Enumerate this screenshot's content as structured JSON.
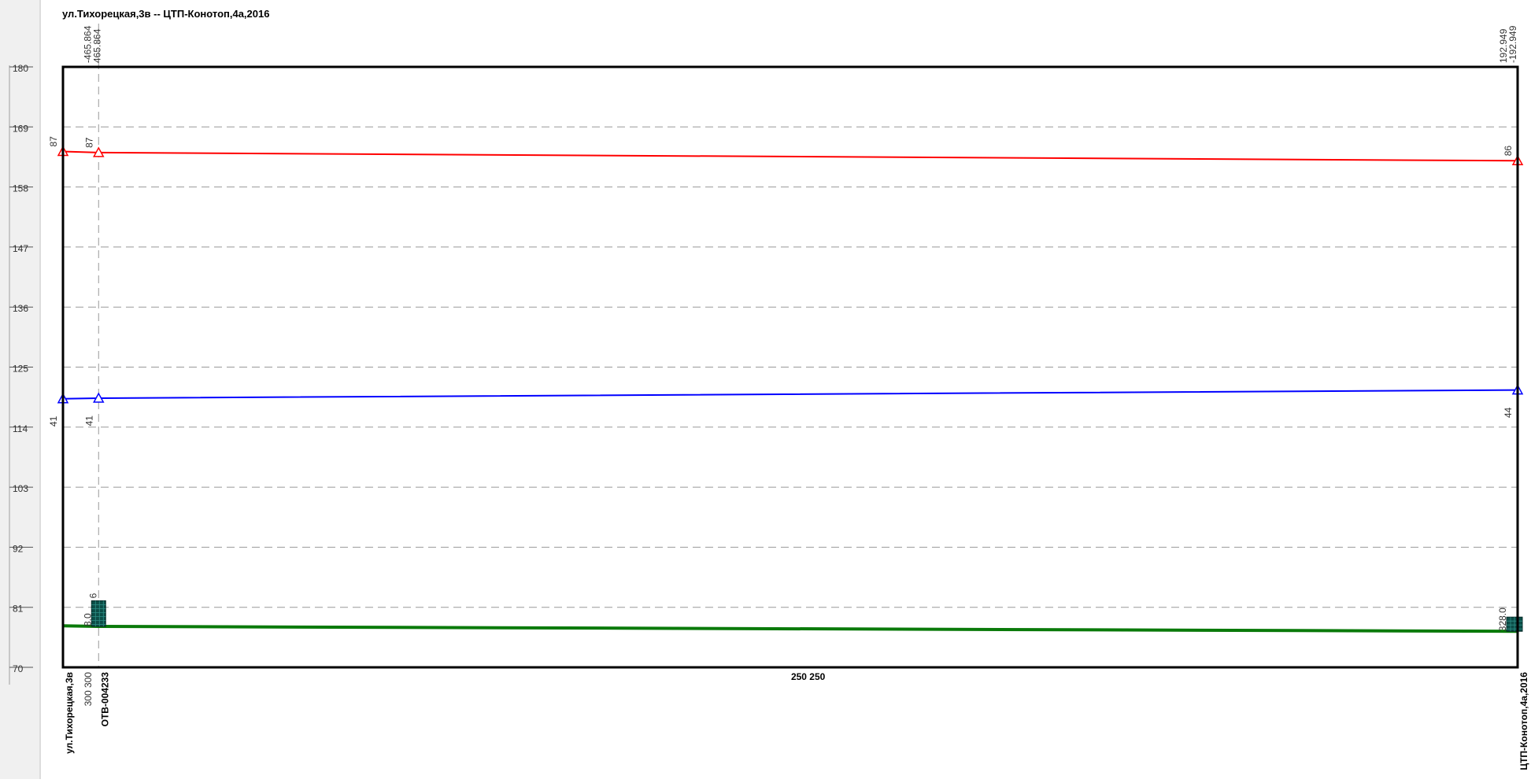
{
  "chart_data": {
    "type": "line",
    "title": "ул.Тихорецкая,3в -- ЦТП-Конотоп,4а,2016",
    "ylim": [
      70,
      180
    ],
    "y_ticks": [
      "180",
      "169",
      "158",
      "147",
      "136",
      "125",
      "114",
      "103",
      "92",
      "81",
      "70"
    ],
    "y_tick_values": [
      180,
      169,
      158,
      147,
      136,
      125,
      114,
      103,
      92,
      81,
      70
    ],
    "grid": true,
    "x": [
      0,
      0.0245,
      1
    ],
    "nodes": [
      {
        "name": "ул.Тихорецкая,3в"
      },
      {
        "name": "ОТВ-004233"
      },
      {
        "name": "ЦТП-Конотоп,4а,2016"
      }
    ],
    "top_labels": [
      {
        "node": 1,
        "lines": [
          "-465.864",
          "465.864"
        ]
      },
      {
        "node": 2,
        "lines": [
          "192.949",
          "-192.949"
        ]
      }
    ],
    "segment_labels": [
      {
        "between": [
          0,
          1
        ],
        "text": "300   300"
      },
      {
        "between": [
          1,
          2
        ],
        "text": "250  250"
      }
    ],
    "series": [
      {
        "color": "#ff0000",
        "values": [
          164.5,
          164.3,
          162.8
        ],
        "labels": [
          "87",
          "87",
          "86"
        ],
        "label_side": "above"
      },
      {
        "color": "#0000ff",
        "values": [
          119.2,
          119.3,
          120.8
        ],
        "labels": [
          "41",
          "41",
          "44"
        ],
        "label_side": "below"
      },
      {
        "color": "#0a7a0a",
        "values": [
          77.6,
          77.5,
          76.6
        ],
        "labels": [],
        "label_side": "none"
      }
    ],
    "markers": [
      {
        "node": 1,
        "top": 82.2,
        "label_top": "6",
        "label_side": "8.0"
      },
      {
        "node": 2,
        "top": 79.2,
        "label_top": "",
        "label_side": "328.0"
      }
    ],
    "colors": {
      "frame": "#000000",
      "grid": "#999999",
      "marker": "#0b4d47",
      "left_panel": "#f0f0f0"
    }
  }
}
